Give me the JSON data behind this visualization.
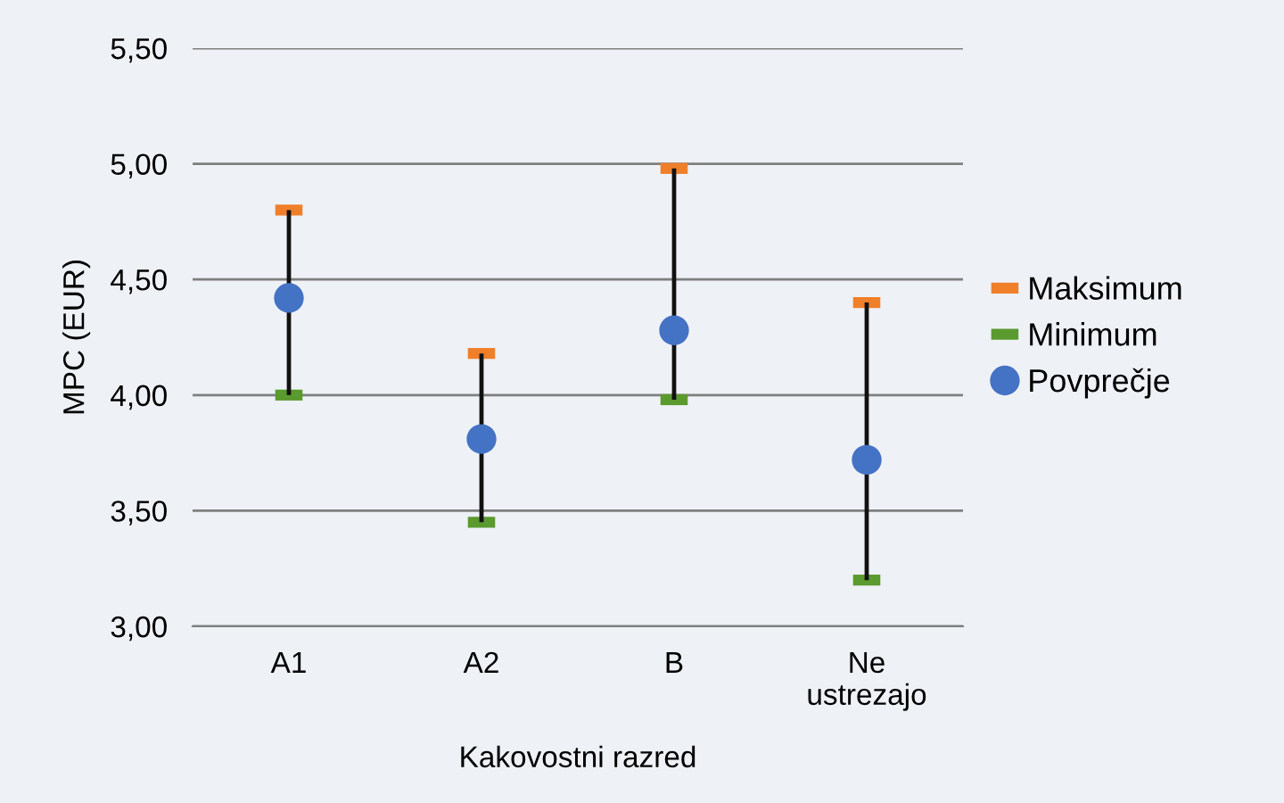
{
  "chart_data": {
    "type": "scatter",
    "xlabel": "Kakovostni razred",
    "ylabel": "MPC (EUR)",
    "categories": [
      "A1",
      "A2",
      "B",
      "Ne\nustrezajo"
    ],
    "series": [
      {
        "type": "bar",
        "color": "#111111",
        "base": [
          4.0,
          3.45,
          3.98,
          3.2
        ],
        "values": [
          0.8,
          0.73,
          1.0,
          1.2
        ]
      },
      {
        "name": "Maksimum",
        "color": "#f07f2a",
        "values": [
          4.8,
          4.18,
          4.98,
          4.4
        ]
      },
      {
        "name": "Minimum",
        "color": "#5a9a2e",
        "values": [
          4.0,
          3.45,
          3.98,
          3.2
        ]
      },
      {
        "name": "Povprečje",
        "color": "#4472c4",
        "marker": "circle",
        "values": [
          4.42,
          3.81,
          4.28,
          3.72
        ]
      }
    ],
    "ylim": [
      3.0,
      5.5
    ],
    "yticks": [
      {
        "value": 3.0,
        "label": "3,00"
      },
      {
        "value": 3.5,
        "label": "3,50"
      },
      {
        "value": 4.0,
        "label": "4,00"
      },
      {
        "value": 4.5,
        "label": "4,50"
      },
      {
        "value": 5.0,
        "label": "5,00"
      },
      {
        "value": 5.5,
        "label": "5,50"
      }
    ],
    "grid": "y",
    "legend": "right"
  }
}
